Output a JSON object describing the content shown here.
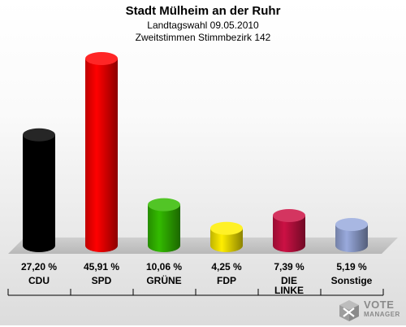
{
  "header": {
    "title": "Stadt Mülheim an der Ruhr",
    "subtitle1": "Landtagswahl 09.05.2010",
    "subtitle2": "Zweitstimmen Stimmbezirk 142"
  },
  "logo": {
    "line1": "VOTE",
    "line2": "MANAGER",
    "icon": "ballot-cross-icon"
  },
  "chart_data": {
    "type": "bar",
    "title": "Stadt Mülheim an der Ruhr",
    "categories": [
      "CDU",
      "SPD",
      "GRÜNE",
      "FDP",
      "DIE LINKE",
      "Sonstige"
    ],
    "category_lines": [
      [
        "CDU"
      ],
      [
        "SPD"
      ],
      [
        "GRÜNE"
      ],
      [
        "FDP"
      ],
      [
        "DIE",
        "LINKE"
      ],
      [
        "Sonstige"
      ]
    ],
    "values": [
      27.2,
      45.91,
      10.06,
      4.25,
      7.39,
      5.19
    ],
    "value_labels": [
      "27,20 %",
      "45,91 %",
      "10,06 %",
      "4,25 %",
      "7,39 %",
      "5,19 %"
    ],
    "colors": [
      "#000000",
      "#ff0000",
      "#33bb00",
      "#ffee00",
      "#cc1144",
      "#99aadd"
    ],
    "ylim": [
      0,
      45.91
    ],
    "grid": false,
    "legend": "none"
  }
}
